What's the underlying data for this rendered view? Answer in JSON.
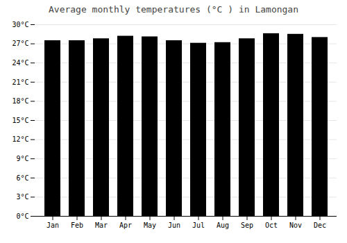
{
  "chart_data": {
    "type": "bar",
    "title": "Average monthly temperatures (°C ) in Lamongan",
    "categories": [
      "Jan",
      "Feb",
      "Mar",
      "Apr",
      "May",
      "Jun",
      "Jul",
      "Aug",
      "Sep",
      "Oct",
      "Nov",
      "Dec"
    ],
    "values": [
      27.5,
      27.5,
      27.8,
      28.2,
      28.1,
      27.5,
      27.1,
      27.2,
      27.8,
      28.6,
      28.5,
      28.0
    ],
    "ylim": [
      0,
      30
    ],
    "yticks": [
      {
        "value": 0,
        "label": "0°C"
      },
      {
        "value": 3,
        "label": "3°C"
      },
      {
        "value": 6,
        "label": "6°C"
      },
      {
        "value": 9,
        "label": "9°C"
      },
      {
        "value": 12,
        "label": "12°C"
      },
      {
        "value": 15,
        "label": "15°C"
      },
      {
        "value": 18,
        "label": "18°C"
      },
      {
        "value": 21,
        "label": "21°C"
      },
      {
        "value": 24,
        "label": "24°C"
      },
      {
        "value": 27,
        "label": "27°C"
      },
      {
        "value": 30,
        "label": "30°C"
      }
    ],
    "grid": true
  }
}
